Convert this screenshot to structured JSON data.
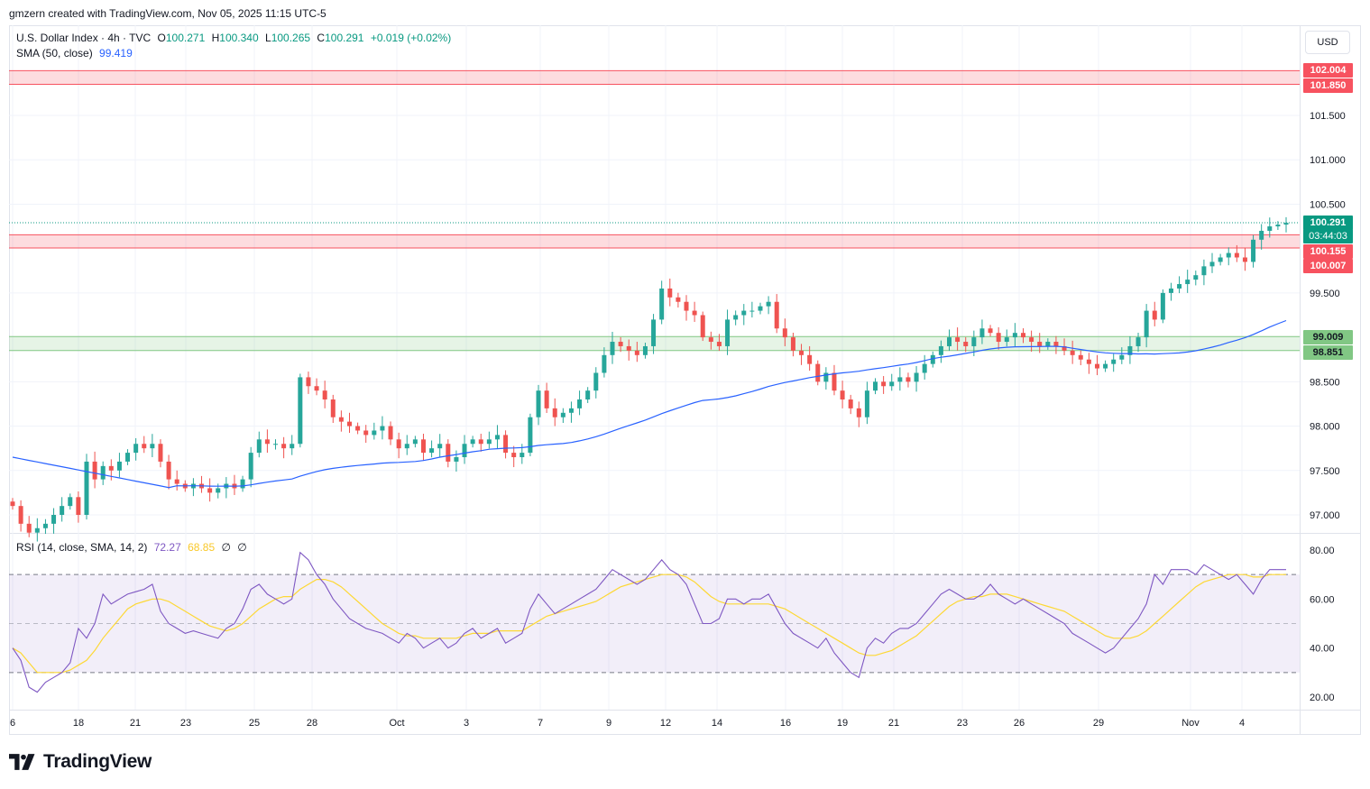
{
  "header": {
    "created_by": "gmzern created with TradingView.com, Nov 05, 2025 11:15 UTC-5"
  },
  "price_pane": {
    "symbol": "U.S. Dollar Index · 4h · TVC",
    "ohlc": {
      "o_label": "O",
      "o": "100.271",
      "h_label": "H",
      "h": "100.340",
      "l_label": "L",
      "l": "100.265",
      "c_label": "C",
      "c": "100.291",
      "change": "+0.019 (+0.02%)"
    },
    "sma_label": "SMA (50, close)",
    "sma_value": "99.419",
    "currency": "USD",
    "last_price_tag": "100.291",
    "countdown_tag": "03:44:03",
    "zone_tags": [
      {
        "value": "102.004",
        "color": "#f7525f"
      },
      {
        "value": "101.850",
        "color": "#f7525f"
      },
      {
        "value": "100.155",
        "color": "#f7525f"
      },
      {
        "value": "100.007",
        "color": "#f7525f"
      },
      {
        "value": "99.009",
        "color": "#81c784"
      },
      {
        "value": "98.851",
        "color": "#81c784"
      }
    ]
  },
  "rsi_pane": {
    "label": "RSI (14, close, SMA, 14, 2)",
    "rsi_value": "72.27",
    "sma_value": "68.85",
    "extra1": "∅",
    "extra2": "∅"
  },
  "colors": {
    "up": "#26a69a",
    "down": "#ef5350",
    "sma": "#2962ff",
    "rsi": "#7e57c2",
    "rsi_ma": "#fdd835",
    "support": "#81c784",
    "resistance": "#f7525f"
  },
  "logo": {
    "text": "TradingView"
  },
  "chart_data": [
    {
      "type": "candlestick",
      "title": "U.S. Dollar Index · 4h · TVC",
      "y_axis_ticks": [
        "97.000",
        "97.500",
        "98.000",
        "98.500",
        "99.500",
        "100.500",
        "101.000",
        "101.500"
      ],
      "y_range": [
        96.8,
        102.3
      ],
      "x_axis_ticks": [
        "6",
        "18",
        "21",
        "23",
        "25",
        "28",
        "Oct",
        "3",
        "7",
        "9",
        "12",
        "14",
        "16",
        "19",
        "21",
        "23",
        "26",
        "29",
        "Nov",
        "4"
      ],
      "zones": [
        {
          "kind": "resistance",
          "low": 101.85,
          "high": 102.004
        },
        {
          "kind": "resistance",
          "low": 100.007,
          "high": 100.155
        },
        {
          "kind": "support",
          "low": 98.851,
          "high": 99.009
        }
      ],
      "last_price": 100.291,
      "closes": [
        97.1,
        96.9,
        96.8,
        96.85,
        96.9,
        97.0,
        97.1,
        97.2,
        97.0,
        97.6,
        97.4,
        97.55,
        97.5,
        97.6,
        97.7,
        97.8,
        97.75,
        97.8,
        97.6,
        97.4,
        97.35,
        97.3,
        97.35,
        97.3,
        97.25,
        97.3,
        97.35,
        97.3,
        97.4,
        97.7,
        97.85,
        97.8,
        97.8,
        97.75,
        97.8,
        98.55,
        98.45,
        98.4,
        98.3,
        98.1,
        98.05,
        98.0,
        97.95,
        97.9,
        97.95,
        98.0,
        97.85,
        97.75,
        97.8,
        97.85,
        97.7,
        97.75,
        97.8,
        97.6,
        97.65,
        97.8,
        97.85,
        97.8,
        97.85,
        97.9,
        97.7,
        97.65,
        97.7,
        98.1,
        98.4,
        98.2,
        98.1,
        98.15,
        98.2,
        98.3,
        98.4,
        98.6,
        98.8,
        98.95,
        98.9,
        98.85,
        98.8,
        98.9,
        99.2,
        99.55,
        99.45,
        99.4,
        99.3,
        99.25,
        99.0,
        98.95,
        98.9,
        99.2,
        99.25,
        99.3,
        99.3,
        99.35,
        99.4,
        99.1,
        99.0,
        98.85,
        98.8,
        98.7,
        98.5,
        98.6,
        98.4,
        98.3,
        98.2,
        98.1,
        98.4,
        98.5,
        98.45,
        98.5,
        98.55,
        98.5,
        98.6,
        98.7,
        98.8,
        98.9,
        99.0,
        98.95,
        98.9,
        99.0,
        99.1,
        99.05,
        98.95,
        99.0,
        99.05,
        99.0,
        98.95,
        98.9,
        98.95,
        98.9,
        98.85,
        98.8,
        98.75,
        98.7,
        98.65,
        98.7,
        98.75,
        98.8,
        98.9,
        99.0,
        99.3,
        99.2,
        99.5,
        99.55,
        99.6,
        99.65,
        99.7,
        99.8,
        99.85,
        99.9,
        99.95,
        99.9,
        99.85,
        100.1,
        100.2,
        100.25,
        100.27,
        100.29
      ]
    },
    {
      "type": "line",
      "title": "RSI (14, close, SMA, 14, 2)",
      "y_axis_ticks": [
        "20.00",
        "40.00",
        "60.00",
        "80.00"
      ],
      "y_range": [
        15,
        85
      ],
      "bands": {
        "upper": 70,
        "middle": 50,
        "lower": 30
      },
      "rsi": [
        40,
        35,
        24,
        22,
        26,
        28,
        30,
        34,
        48,
        44,
        50,
        62,
        58,
        60,
        62,
        63,
        64,
        66,
        55,
        50,
        48,
        46,
        47,
        46,
        45,
        44,
        48,
        50,
        56,
        64,
        66,
        62,
        60,
        58,
        60,
        79,
        76,
        70,
        66,
        60,
        56,
        52,
        50,
        48,
        47,
        46,
        44,
        42,
        46,
        44,
        40,
        42,
        44,
        40,
        42,
        46,
        48,
        44,
        46,
        48,
        42,
        44,
        46,
        56,
        62,
        58,
        54,
        56,
        58,
        60,
        62,
        64,
        68,
        72,
        70,
        68,
        66,
        68,
        72,
        76,
        72,
        70,
        66,
        58,
        50,
        50,
        52,
        60,
        60,
        58,
        60,
        60,
        62,
        56,
        50,
        46,
        44,
        42,
        40,
        44,
        38,
        34,
        30,
        28,
        40,
        44,
        42,
        46,
        48,
        48,
        50,
        54,
        58,
        62,
        64,
        62,
        60,
        60,
        62,
        66,
        62,
        60,
        58,
        60,
        58,
        56,
        54,
        52,
        50,
        46,
        44,
        42,
        40,
        38,
        40,
        44,
        48,
        52,
        58,
        70,
        66,
        72,
        72,
        72,
        70,
        74,
        72,
        70,
        68,
        70,
        66,
        62,
        68,
        72,
        72,
        72
      ],
      "rsi_ma": [
        40,
        38,
        34,
        30,
        30,
        30,
        30,
        31,
        33,
        35,
        39,
        44,
        48,
        52,
        56,
        58,
        59,
        60,
        60,
        59,
        57,
        55,
        53,
        51,
        49,
        48,
        47,
        48,
        50,
        53,
        56,
        58,
        60,
        61,
        61,
        64,
        66,
        68,
        68,
        67,
        65,
        62,
        59,
        56,
        53,
        50,
        48,
        46,
        45,
        45,
        44,
        44,
        44,
        44,
        44,
        45,
        46,
        46,
        46,
        47,
        47,
        47,
        47,
        49,
        51,
        53,
        54,
        55,
        56,
        57,
        58,
        59,
        61,
        63,
        65,
        66,
        67,
        68,
        69,
        70,
        70,
        70,
        69,
        67,
        64,
        61,
        59,
        58,
        58,
        58,
        58,
        58,
        58,
        57,
        56,
        54,
        52,
        50,
        48,
        46,
        44,
        42,
        40,
        38,
        37,
        37,
        38,
        39,
        41,
        43,
        45,
        48,
        51,
        54,
        57,
        59,
        60,
        61,
        61,
        62,
        62,
        62,
        61,
        60,
        59,
        58,
        57,
        56,
        55,
        53,
        51,
        49,
        47,
        45,
        44,
        44,
        44,
        45,
        47,
        50,
        53,
        56,
        59,
        62,
        65,
        67,
        68,
        69,
        70,
        70,
        70,
        69,
        69,
        70,
        70,
        70
      ]
    }
  ]
}
